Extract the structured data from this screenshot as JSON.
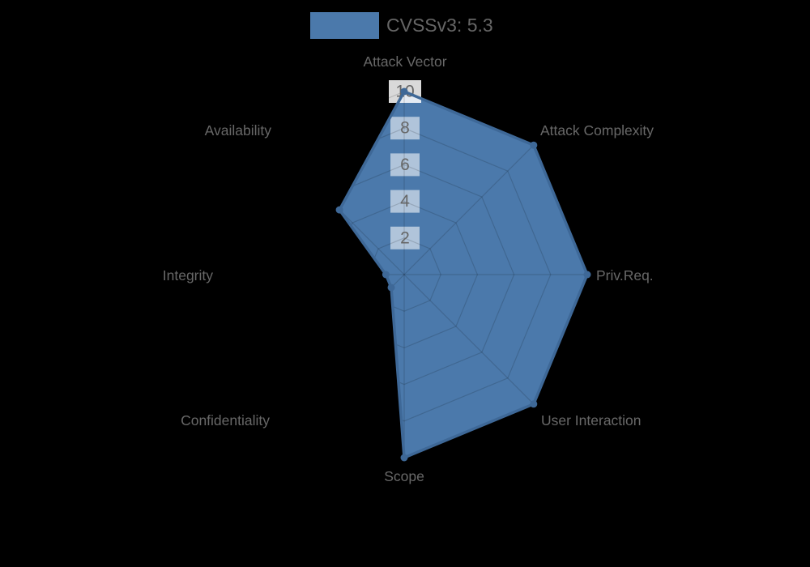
{
  "legend": {
    "label": "CVSSv3: 5.3"
  },
  "chart_data": {
    "type": "radar",
    "title": "CVSSv3: 5.3",
    "categories": [
      "Attack Vector",
      "Attack Complexity",
      "Priv.Req.",
      "User Interaction",
      "Scope",
      "Confidentiality",
      "Integrity",
      "Availability"
    ],
    "series": [
      {
        "name": "CVSSv3: 5.3",
        "values": [
          10,
          10,
          10,
          10,
          10,
          1,
          1,
          5
        ]
      }
    ],
    "scale": {
      "min": 0,
      "max": 10,
      "tick_step": 2,
      "tick_labels": [
        "2",
        "4",
        "6",
        "8",
        "10"
      ]
    },
    "legend_position": "top",
    "grid": "polygonal-web",
    "colors": {
      "background": "#000000",
      "series_fill": "#4b79ab",
      "series_border": "#3e6897",
      "point_marker": "#3e6897",
      "grid_line": "rgba(0,0,0,0.15)",
      "tick_backdrop": "#ffffff",
      "tick_text": "#666666",
      "axis_label": "#686868",
      "legend_text": "#666666"
    }
  }
}
